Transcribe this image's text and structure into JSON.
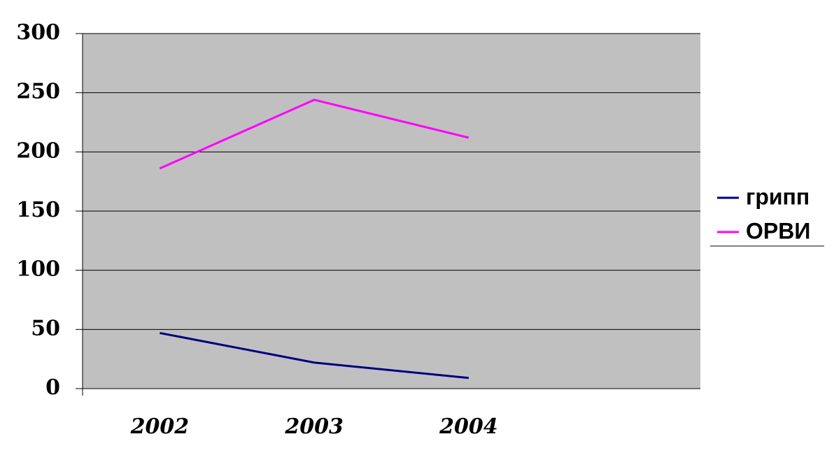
{
  "chart_data": {
    "type": "line",
    "categories": [
      "2002",
      "2003",
      "2004",
      null
    ],
    "series": [
      {
        "name": "грипп",
        "color": "#000080",
        "values": [
          47,
          22,
          9,
          null
        ]
      },
      {
        "name": "ОРВИ",
        "color": "#ff00ff",
        "values": [
          186,
          244,
          212,
          null
        ]
      }
    ],
    "ylim": [
      0,
      300
    ],
    "yticks": [
      0,
      50,
      100,
      150,
      200,
      250,
      300
    ],
    "grid": true,
    "plot_background": "#c0c0c0",
    "legend": "right"
  }
}
